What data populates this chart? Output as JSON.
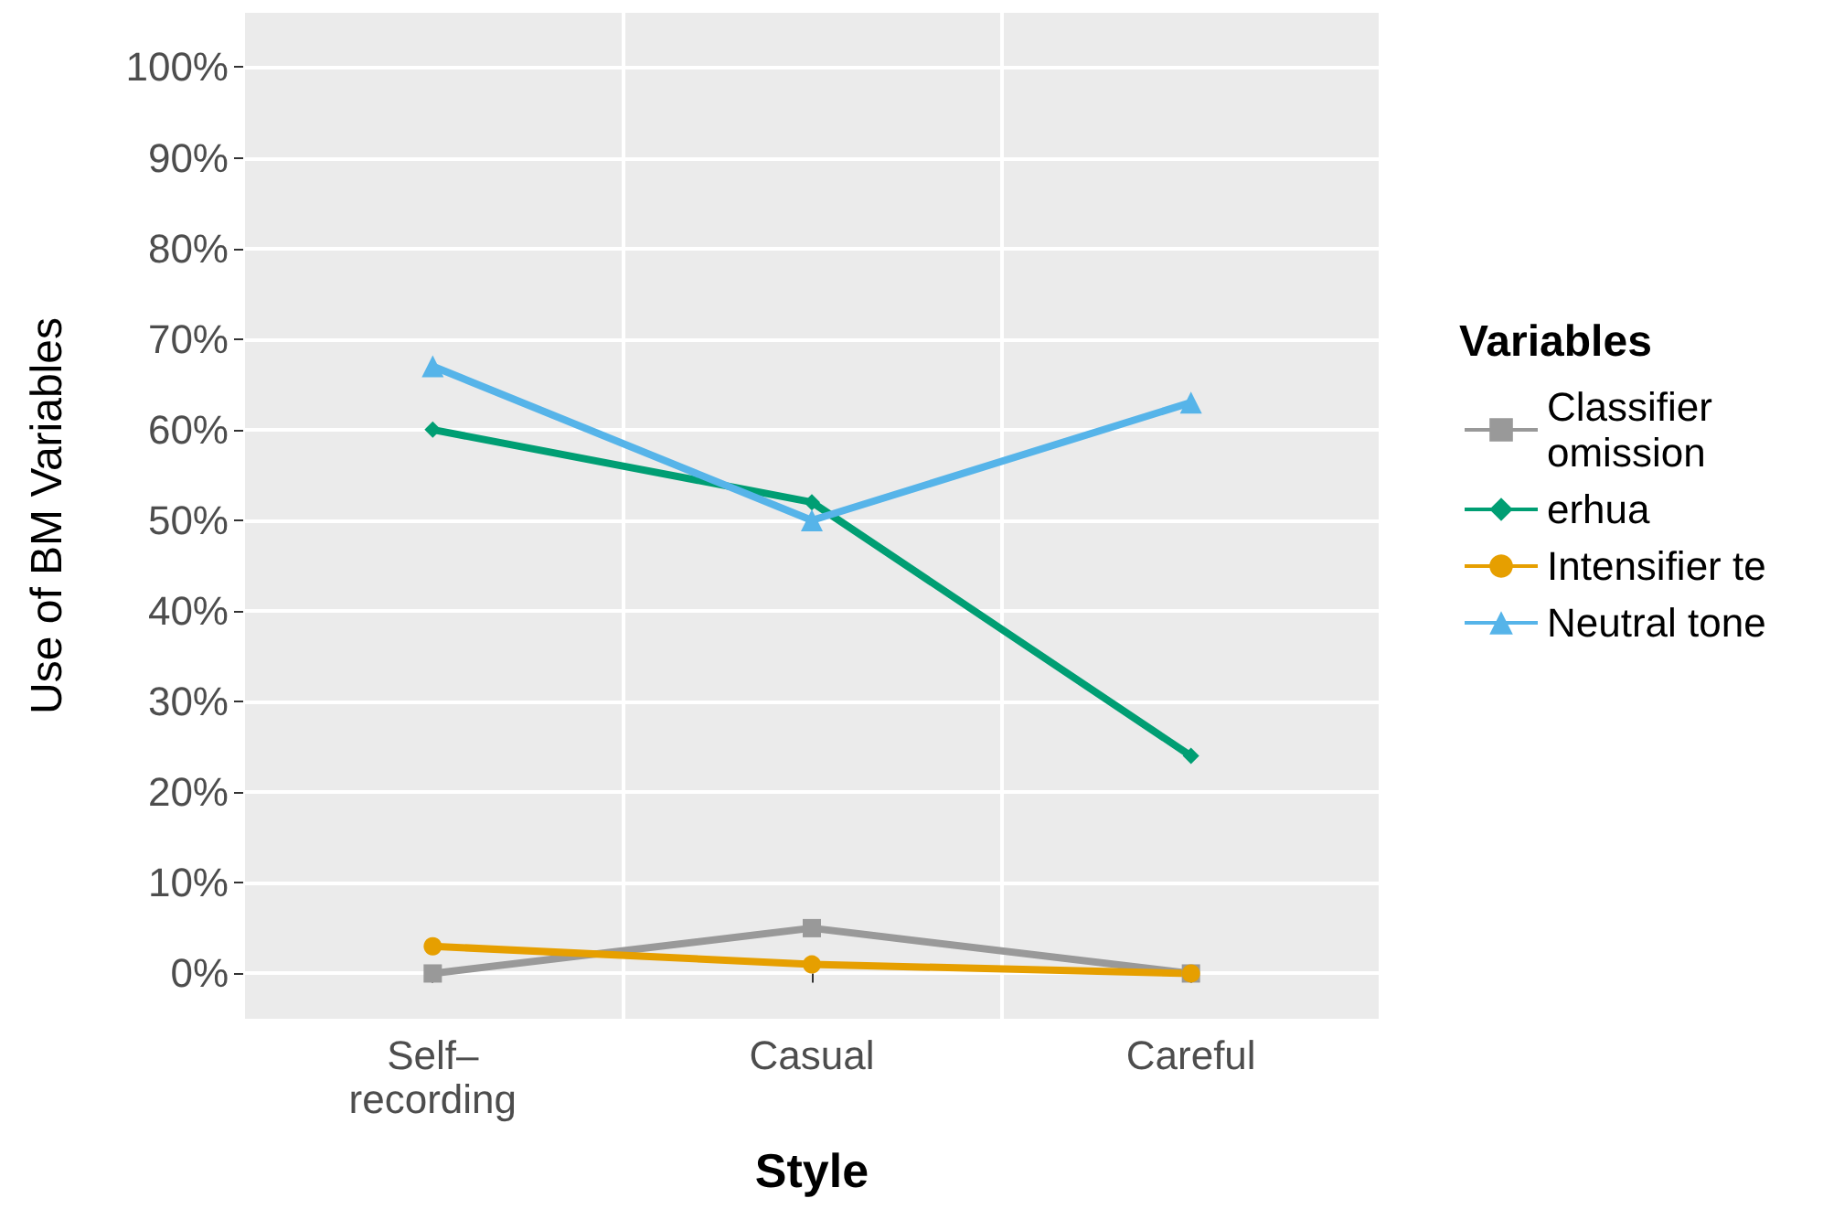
{
  "chart_data": {
    "type": "line",
    "xlabel": "Style",
    "ylabel": "Use of BM Variables",
    "legend_title": "Variables",
    "categories": [
      "Self–recording",
      "Casual",
      "Careful"
    ],
    "series": [
      {
        "name": "Classifier omission",
        "color": "#999999",
        "marker": "square",
        "values": [
          0,
          5,
          0
        ]
      },
      {
        "name": "erhua",
        "color": "#009e73",
        "marker": "diamond",
        "values": [
          60,
          52,
          24
        ]
      },
      {
        "name": "Intensifier te",
        "color": "#e69f00",
        "marker": "circle",
        "values": [
          3,
          1,
          0
        ]
      },
      {
        "name": "Neutral tone",
        "color": "#56b4e9",
        "marker": "triangle",
        "values": [
          67,
          50,
          63
        ]
      }
    ],
    "ylim": [
      -5,
      106
    ],
    "yticks": [
      {
        "value": 0,
        "label": "0%"
      },
      {
        "value": 10,
        "label": "10%"
      },
      {
        "value": 20,
        "label": "20%"
      },
      {
        "value": 30,
        "label": "30%"
      },
      {
        "value": 40,
        "label": "40%"
      },
      {
        "value": 50,
        "label": "50%"
      },
      {
        "value": 60,
        "label": "60%"
      },
      {
        "value": 70,
        "label": "70%"
      },
      {
        "value": 80,
        "label": "80%"
      },
      {
        "value": 90,
        "label": "90%"
      },
      {
        "value": 100,
        "label": "100%"
      }
    ],
    "grid": true,
    "legend": "right",
    "line_style": "solid"
  }
}
